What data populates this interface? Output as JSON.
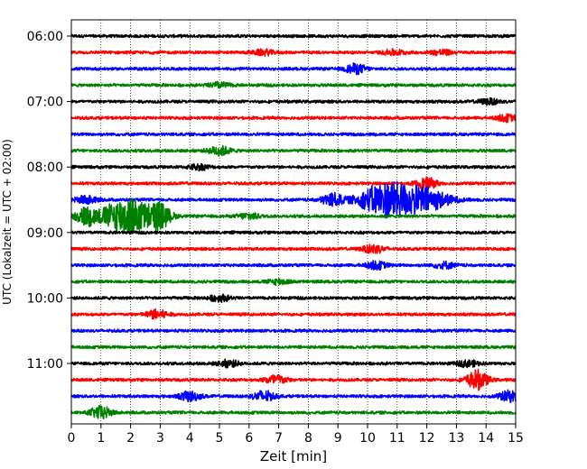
{
  "chart_data": {
    "type": "line",
    "chart_kind": "helicorder seismogram",
    "xlabel": "Zeit  [min]",
    "ylabel": "UTC (Lokalzeit = UTC + 02:00)",
    "xlim": [
      0,
      15
    ],
    "x_ticks": [
      0,
      1,
      2,
      3,
      4,
      5,
      6,
      7,
      8,
      9,
      10,
      11,
      12,
      13,
      14,
      15
    ],
    "x_grid": "dotted vertical lines at each minute",
    "y_tick_labels": [
      "06:00",
      "07:00",
      "08:00",
      "09:00",
      "10:00",
      "11:00"
    ],
    "trace_start_times": [
      "06:00",
      "06:15",
      "06:30",
      "06:45",
      "07:00",
      "07:15",
      "07:30",
      "07:45",
      "08:00",
      "08:15",
      "08:30",
      "08:45",
      "09:00",
      "09:15",
      "09:30",
      "09:45",
      "10:00",
      "10:15",
      "10:30",
      "10:45",
      "11:00",
      "11:15",
      "11:30",
      "11:45"
    ],
    "color_cycle": [
      "#000000",
      "#ff0000",
      "#0000ff",
      "#008000"
    ],
    "events": [
      {
        "trace": 1,
        "minute": 6.5,
        "amplitude": 0.25
      },
      {
        "trace": 1,
        "minute": 10.9,
        "amplitude": 0.25
      },
      {
        "trace": 1,
        "minute": 12.5,
        "amplitude": 0.25
      },
      {
        "trace": 2,
        "minute": 9.6,
        "amplitude": 0.45
      },
      {
        "trace": 3,
        "minute": 5.0,
        "amplitude": 0.25
      },
      {
        "trace": 4,
        "minute": 14.1,
        "amplitude": 0.25
      },
      {
        "trace": 5,
        "minute": 14.7,
        "amplitude": 0.3
      },
      {
        "trace": 7,
        "minute": 5.0,
        "amplitude": 0.45
      },
      {
        "trace": 8,
        "minute": 4.3,
        "amplitude": 0.25
      },
      {
        "trace": 9,
        "minute": 12.0,
        "amplitude": 0.5
      },
      {
        "trace": 10,
        "minute": 0.5,
        "amplitude": 0.4
      },
      {
        "trace": 10,
        "minute": 8.8,
        "amplitude": 0.6
      },
      {
        "trace": 10,
        "minute": 10.6,
        "amplitude": 1.6
      },
      {
        "trace": 10,
        "minute": 11.9,
        "amplitude": 1.1
      },
      {
        "trace": 11,
        "minute": 0.5,
        "amplitude": 0.8
      },
      {
        "trace": 11,
        "minute": 1.9,
        "amplitude": 1.8
      },
      {
        "trace": 11,
        "minute": 3.0,
        "amplitude": 1.0
      },
      {
        "trace": 11,
        "minute": 6.0,
        "amplitude": 0.3
      },
      {
        "trace": 13,
        "minute": 10.2,
        "amplitude": 0.4
      },
      {
        "trace": 14,
        "minute": 10.3,
        "amplitude": 0.35
      },
      {
        "trace": 14,
        "minute": 12.6,
        "amplitude": 0.3
      },
      {
        "trace": 15,
        "minute": 7.0,
        "amplitude": 0.25
      },
      {
        "trace": 16,
        "minute": 5.0,
        "amplitude": 0.3
      },
      {
        "trace": 17,
        "minute": 2.9,
        "amplitude": 0.45
      },
      {
        "trace": 20,
        "minute": 5.3,
        "amplitude": 0.3
      },
      {
        "trace": 20,
        "minute": 13.4,
        "amplitude": 0.3
      },
      {
        "trace": 21,
        "minute": 6.9,
        "amplitude": 0.45
      },
      {
        "trace": 21,
        "minute": 13.7,
        "amplitude": 0.9
      },
      {
        "trace": 22,
        "minute": 4.0,
        "amplitude": 0.45
      },
      {
        "trace": 22,
        "minute": 6.5,
        "amplitude": 0.5
      },
      {
        "trace": 22,
        "minute": 14.8,
        "amplitude": 0.5
      },
      {
        "trace": 23,
        "minute": 1.0,
        "amplitude": 0.6
      }
    ]
  }
}
